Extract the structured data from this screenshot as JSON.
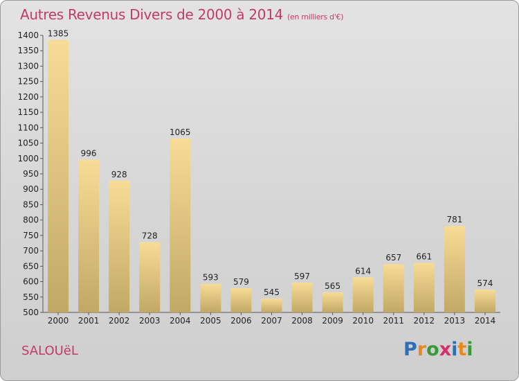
{
  "title": {
    "main": "Autres Revenus Divers de 2000 à 2014",
    "unit": "(en milliers d'€)"
  },
  "commune": "SALOUëL",
  "logo": {
    "text": "Proxiti",
    "letters": [
      {
        "char": "P",
        "color": "#2f6db5"
      },
      {
        "char": "r",
        "color": "#e8891a"
      },
      {
        "char": "o",
        "color": "#3a9a3a"
      },
      {
        "char": "x",
        "color": "#d32f6b"
      },
      {
        "char": "i",
        "color": "#2f6db5"
      },
      {
        "char": "t",
        "color": "#e8891a"
      },
      {
        "char": "i",
        "color": "#3a9a3a"
      }
    ]
  },
  "colors": {
    "title": "#c43a66",
    "bar_top": "#f6dc97",
    "bar_bottom": "#c2a865"
  },
  "chart_data": {
    "type": "bar",
    "title": "Autres Revenus Divers de 2000 à 2014",
    "subtitle": "(en milliers d'€)",
    "categories": [
      "2000",
      "2001",
      "2002",
      "2003",
      "2004",
      "2005",
      "2006",
      "2007",
      "2008",
      "2009",
      "2010",
      "2011",
      "2012",
      "2013",
      "2014"
    ],
    "values": [
      1385,
      996,
      928,
      728,
      1065,
      593,
      579,
      545,
      597,
      565,
      614,
      657,
      661,
      781,
      574
    ],
    "ylim": [
      500,
      1400
    ],
    "yticks": [
      500,
      550,
      600,
      650,
      700,
      750,
      800,
      850,
      900,
      950,
      1000,
      1050,
      1100,
      1150,
      1200,
      1250,
      1300,
      1350,
      1400
    ],
    "grid": false,
    "data_labels": true
  }
}
